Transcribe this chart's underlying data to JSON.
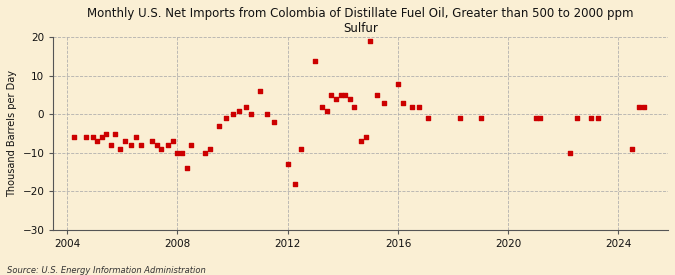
{
  "title": "Monthly U.S. Net Imports from Colombia of Distillate Fuel Oil, Greater than 500 to 2000 ppm\nSulfur",
  "ylabel": "Thousand Barrels per Day",
  "source": "Source: U.S. Energy Information Administration",
  "ylim": [
    -30,
    20
  ],
  "yticks": [
    -30,
    -20,
    -10,
    0,
    10,
    20
  ],
  "xlim": [
    2003.5,
    2025.8
  ],
  "xticks": [
    2004,
    2008,
    2012,
    2016,
    2020,
    2024
  ],
  "background_color": "#faefd4",
  "marker_color": "#cc0000",
  "data_x": [
    2004.25,
    2004.67,
    2004.92,
    2005.08,
    2005.25,
    2005.42,
    2005.58,
    2005.75,
    2005.92,
    2006.08,
    2006.33,
    2006.5,
    2006.67,
    2007.08,
    2007.25,
    2007.42,
    2007.67,
    2007.83,
    2008.0,
    2008.17,
    2008.33,
    2008.5,
    2009.0,
    2009.17,
    2009.5,
    2009.75,
    2010.0,
    2010.25,
    2010.5,
    2010.67,
    2011.0,
    2011.25,
    2011.5,
    2012.0,
    2012.25,
    2012.5,
    2013.0,
    2013.25,
    2013.42,
    2013.58,
    2013.75,
    2013.92,
    2014.08,
    2014.25,
    2014.42,
    2014.67,
    2014.83,
    2015.0,
    2015.25,
    2015.5,
    2016.0,
    2016.17,
    2016.5,
    2016.75,
    2017.08,
    2018.25,
    2019.0,
    2021.0,
    2021.17,
    2022.25,
    2022.5,
    2023.0,
    2023.25,
    2024.5,
    2024.75,
    2024.92
  ],
  "data_y": [
    -6,
    -6,
    -6,
    -7,
    -6,
    -5,
    -8,
    -5,
    -9,
    -7,
    -8,
    -6,
    -8,
    -7,
    -8,
    -9,
    -8,
    -7,
    -10,
    -10,
    -14,
    -8,
    -10,
    -9,
    -3,
    -1,
    0,
    1,
    2,
    0,
    6,
    0,
    -2,
    -13,
    -18,
    -9,
    14,
    2,
    1,
    5,
    4,
    5,
    5,
    4,
    2,
    -7,
    -6,
    19,
    5,
    3,
    8,
    3,
    2,
    2,
    -1,
    -1,
    -1,
    -1,
    -1,
    -10,
    -1,
    -1,
    -1,
    -9,
    2,
    2
  ]
}
